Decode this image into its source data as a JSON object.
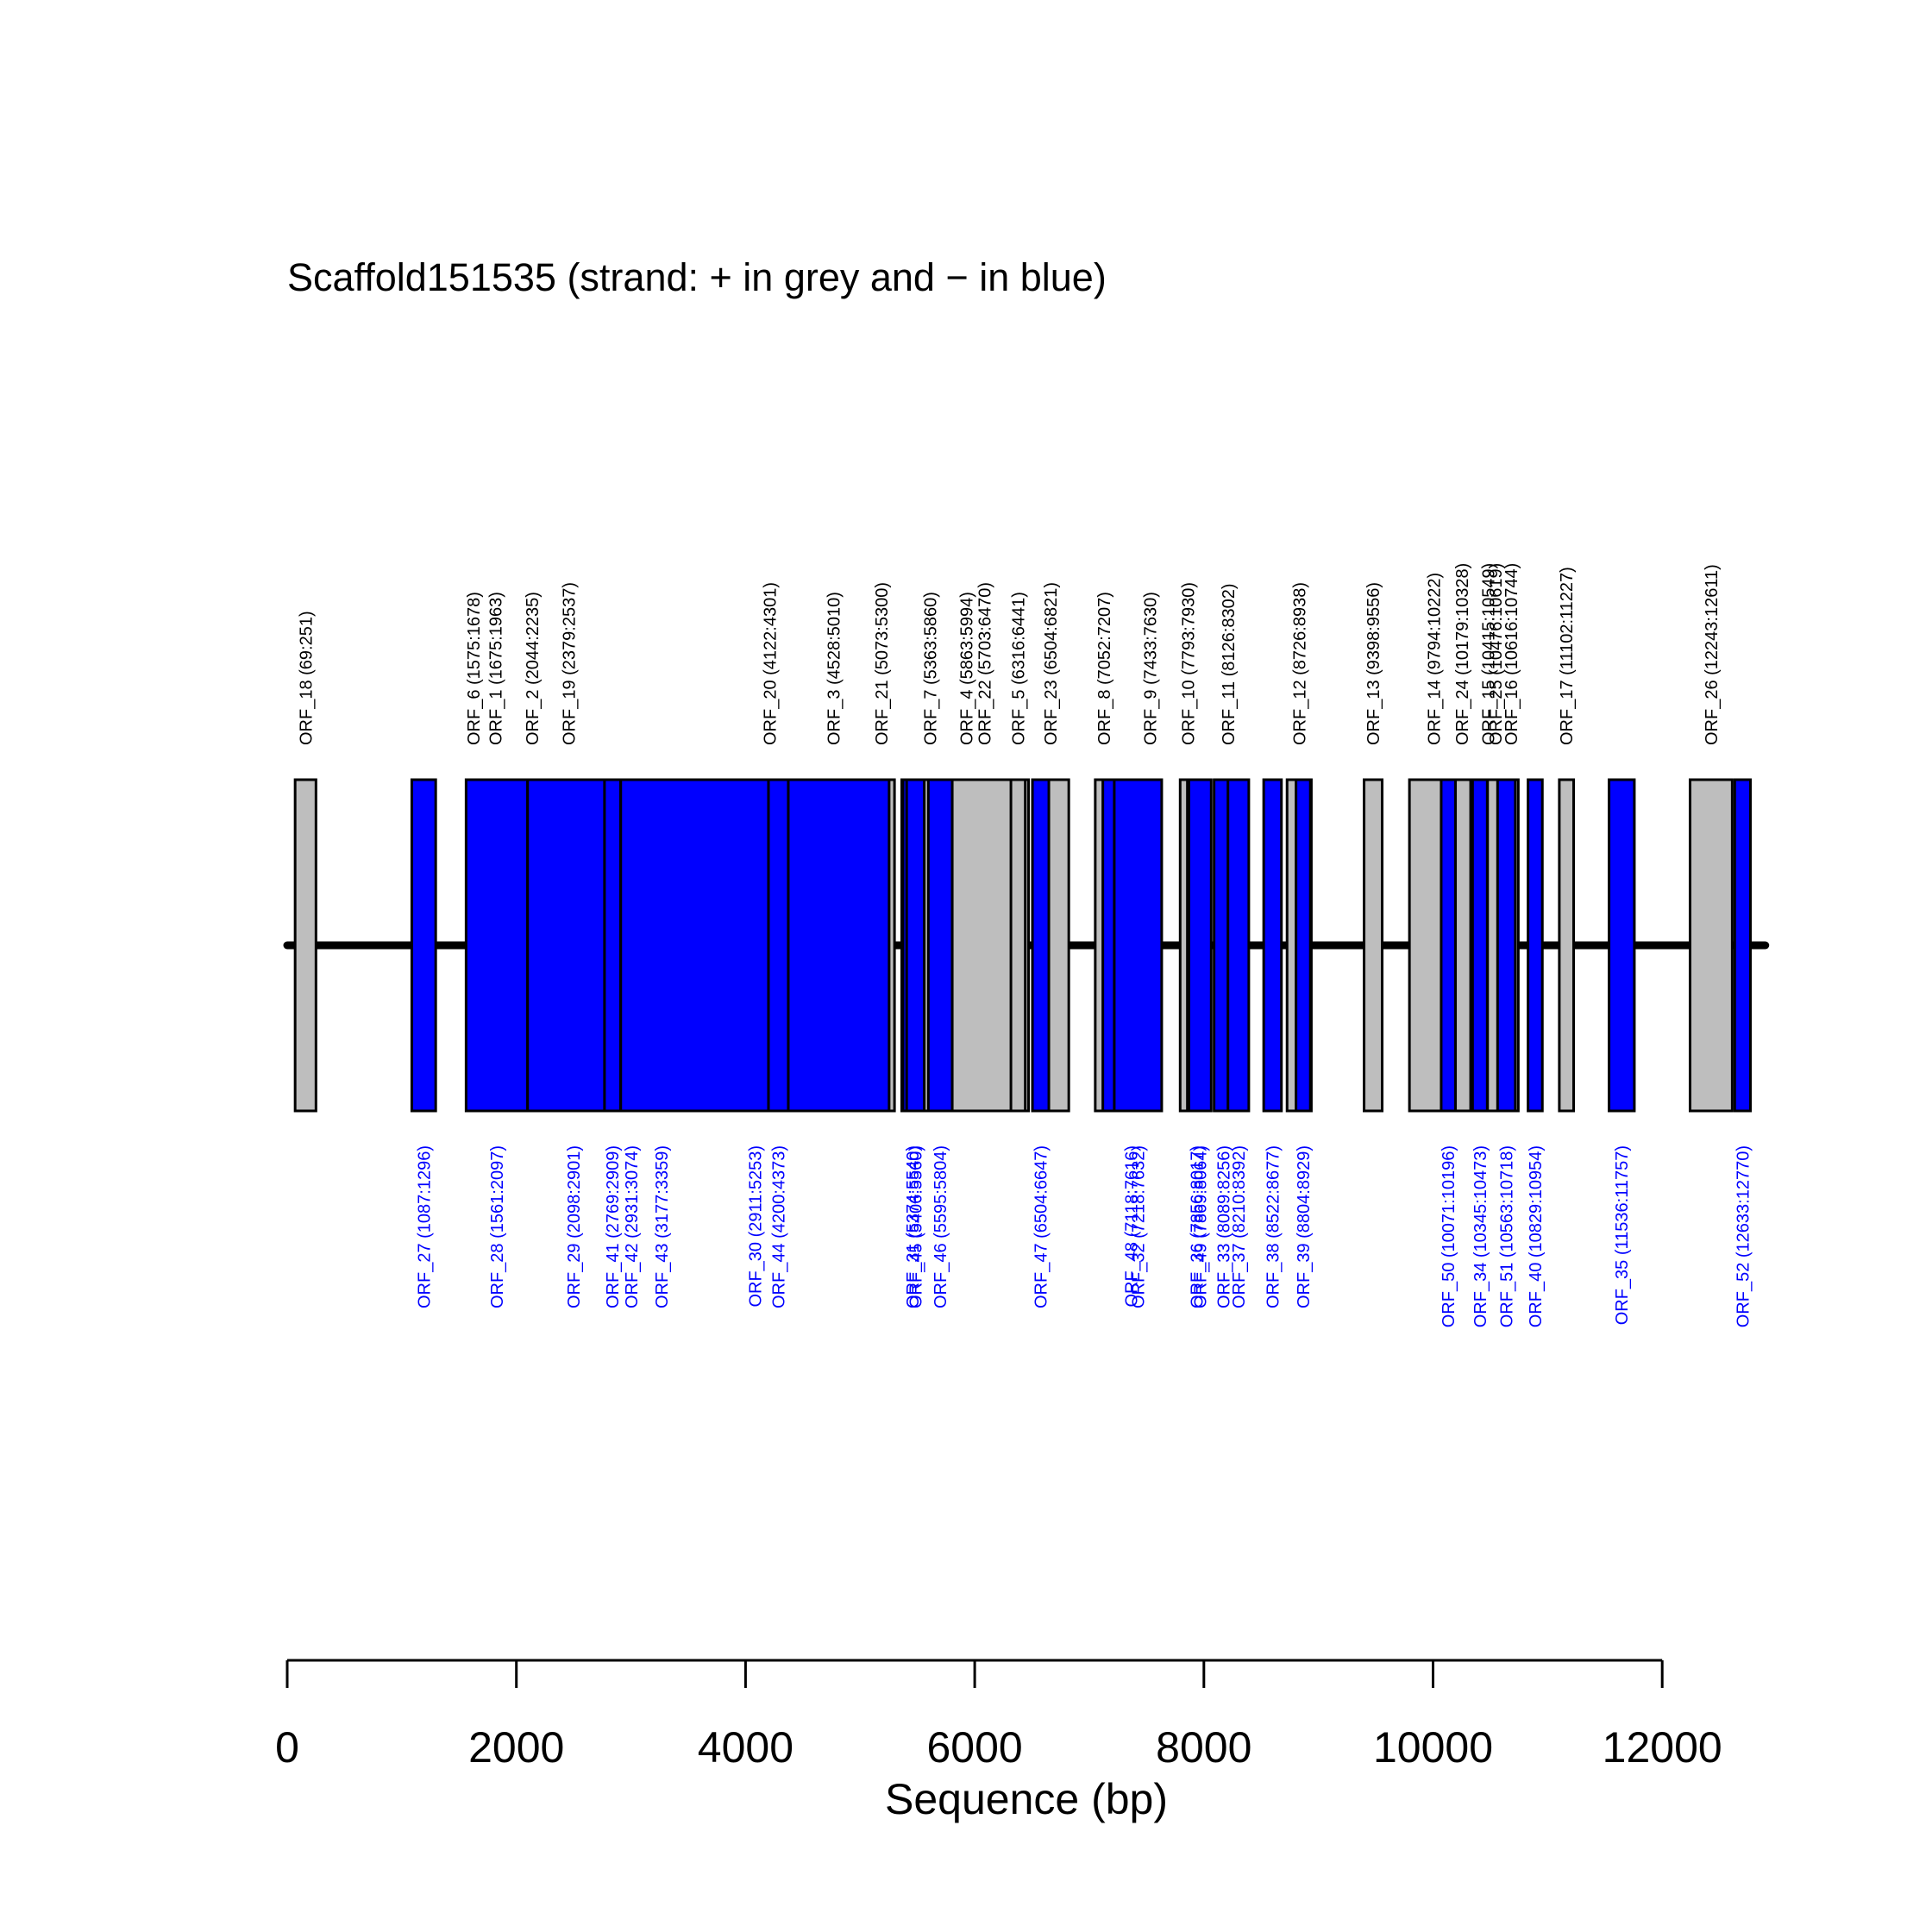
{
  "chart_data": {
    "type": "orf-map",
    "title": "Scaffold151535 (strand: + in grey and − in blue)",
    "xlabel": "Sequence (bp)",
    "xlim": [
      0,
      12900
    ],
    "xticks": [
      0,
      2000,
      4000,
      6000,
      8000,
      10000,
      12000
    ],
    "tick_labels": [
      "0",
      "2000",
      "4000",
      "6000",
      "8000",
      "10000",
      "12000"
    ],
    "colors": {
      "plus": "#bebebe",
      "minus": "#0000ff",
      "outline": "#000000"
    },
    "plus_strand": [
      {
        "name": "ORF_18",
        "start": 69,
        "end": 251
      },
      {
        "name": "ORF_6",
        "start": 1575,
        "end": 1678
      },
      {
        "name": "ORF_1",
        "start": 1675,
        "end": 1963
      },
      {
        "name": "ORF_2",
        "start": 2044,
        "end": 2235
      },
      {
        "name": "ORF_19",
        "start": 2379,
        "end": 2537
      },
      {
        "name": "ORF_20",
        "start": 4122,
        "end": 4301
      },
      {
        "name": "ORF_3",
        "start": 4528,
        "end": 5010
      },
      {
        "name": "ORF_21",
        "start": 5073,
        "end": 5300
      },
      {
        "name": "ORF_7",
        "start": 5363,
        "end": 5860
      },
      {
        "name": "ORF_4",
        "start": 5863,
        "end": 5994
      },
      {
        "name": "ORF_22",
        "start": 5703,
        "end": 6470
      },
      {
        "name": "ORF_5",
        "start": 6316,
        "end": 6441
      },
      {
        "name": "ORF_23",
        "start": 6504,
        "end": 6821
      },
      {
        "name": "ORF_8",
        "start": 7052,
        "end": 7207
      },
      {
        "name": "ORF_9",
        "start": 7433,
        "end": 7630
      },
      {
        "name": "ORF_10",
        "start": 7793,
        "end": 7930
      },
      {
        "name": "ORF_11",
        "start": 8126,
        "end": 8302
      },
      {
        "name": "ORF_12",
        "start": 8726,
        "end": 8938
      },
      {
        "name": "ORF_13",
        "start": 9398,
        "end": 9556
      },
      {
        "name": "ORF_14",
        "start": 9794,
        "end": 10222
      },
      {
        "name": "ORF_24",
        "start": 10179,
        "end": 10328
      },
      {
        "name": "ORF_15",
        "start": 10415,
        "end": 10549
      },
      {
        "name": "ORF_25",
        "start": 10476,
        "end": 10619
      },
      {
        "name": "ORF_16",
        "start": 10616,
        "end": 10744
      },
      {
        "name": "ORF_17",
        "start": 11102,
        "end": 11227
      },
      {
        "name": "ORF_26",
        "start": 12243,
        "end": 12611
      }
    ],
    "plus_labels": [
      "ORF_18 (69:251)",
      "ORF_6 (1575:1678)",
      "ORF_1 (1675:1963)",
      "ORF_2 (2044:2235)",
      "ORF_19 (2379:2537)",
      "ORF_20 (4122:4301)",
      "ORF_3 (4528:5010)",
      "ORF_21 (5073:5300)",
      "ORF_7 (5363:5860)",
      "ORF_4 (5863:5994)",
      "ORF_22 (5703:6470)",
      "ORF_5 (6316:6441)",
      "ORF_23 (6504:6821)",
      "ORF_8 (7052:7207)",
      "ORF_9 (7433:7630)",
      "ORF_10 (7793:7930)",
      "ORF_11 (8126:8302)",
      "ORF_12 (8726:8938)",
      "ORF_13 (9398:9556)",
      "ORF_14 (9794:10222)",
      "ORF_24 (10179:10328)",
      "ORF_15 (10415:10549)",
      "ORF_25 (10476:10619)",
      "ORF_16 (10616:10744)",
      "ORF_17 (11102:11227)",
      "ORF_26 (12243:12611)"
    ],
    "minus_strand": [
      {
        "name": "ORF_27",
        "start": 1087,
        "end": 1296
      },
      {
        "name": "ORF_28",
        "start": 1561,
        "end": 2097
      },
      {
        "name": "ORF_29",
        "start": 2098,
        "end": 2901
      },
      {
        "name": "ORF_41",
        "start": 2769,
        "end": 2909
      },
      {
        "name": "ORF_42",
        "start": 2931,
        "end": 3074
      },
      {
        "name": "ORF_43",
        "start": 3177,
        "end": 3359
      },
      {
        "name": "ORF_30",
        "start": 2911,
        "end": 5253
      },
      {
        "name": "ORF_44",
        "start": 4200,
        "end": 4373
      },
      {
        "name": "ORF_31",
        "start": 5374,
        "end": 5540
      },
      {
        "name": "ORF_45",
        "start": 5406,
        "end": 5560
      },
      {
        "name": "ORF_46",
        "start": 5595,
        "end": 5804
      },
      {
        "name": "ORF_47",
        "start": 6504,
        "end": 6647
      },
      {
        "name": "ORF_48",
        "start": 7118,
        "end": 7616
      },
      {
        "name": "ORF_32",
        "start": 7218,
        "end": 7632
      },
      {
        "name": "ORF_36",
        "start": 7856,
        "end": 8017
      },
      {
        "name": "ORF_49",
        "start": 7869,
        "end": 8064
      },
      {
        "name": "ORF_33",
        "start": 8089,
        "end": 8256
      },
      {
        "name": "ORF_37",
        "start": 8210,
        "end": 8392
      },
      {
        "name": "ORF_38",
        "start": 8522,
        "end": 8677
      },
      {
        "name": "ORF_39",
        "start": 8804,
        "end": 8929
      },
      {
        "name": "ORF_50",
        "start": 10071,
        "end": 10196
      },
      {
        "name": "ORF_34",
        "start": 10345,
        "end": 10473
      },
      {
        "name": "ORF_51",
        "start": 10563,
        "end": 10718
      },
      {
        "name": "ORF_40",
        "start": 10829,
        "end": 10954
      },
      {
        "name": "ORF_35",
        "start": 11536,
        "end": 11757
      },
      {
        "name": "ORF_52",
        "start": 12633,
        "end": 12770
      }
    ],
    "minus_labels": [
      "ORF_27 (1087:1296)",
      "ORF_28 (1561:2097)",
      "ORF_29 (2098:2901)",
      "ORF_41 (2769:2909)",
      "ORF_42 (2931:3074)",
      "ORF_43 (3177:3359)",
      "ORF_30 (2911:5253)",
      "ORF_44 (4200:4373)",
      "ORF_31 (5374:5540)",
      "ORF_45 (5406:5560)",
      "ORF_46 (5595:5804)",
      "ORF_47 (6504:6647)",
      "ORF_48 (7118:7616)",
      "ORF_32 (7218:7632)",
      "ORF_36 (7856:8017)",
      "ORF_49 (7869:8064)",
      "ORF_33 (8089:8256)",
      "ORF_37 (8210:8392)",
      "ORF_38 (8522:8677)",
      "ORF_39 (8804:8929)",
      "ORF_50 (10071:10196)",
      "ORF_34 (10345:10473)",
      "ORF_51 (10563:10718)",
      "ORF_40 (10829:10954)",
      "ORF_35 (11536:11757)",
      "ORF_52 (12633:12770)"
    ]
  }
}
